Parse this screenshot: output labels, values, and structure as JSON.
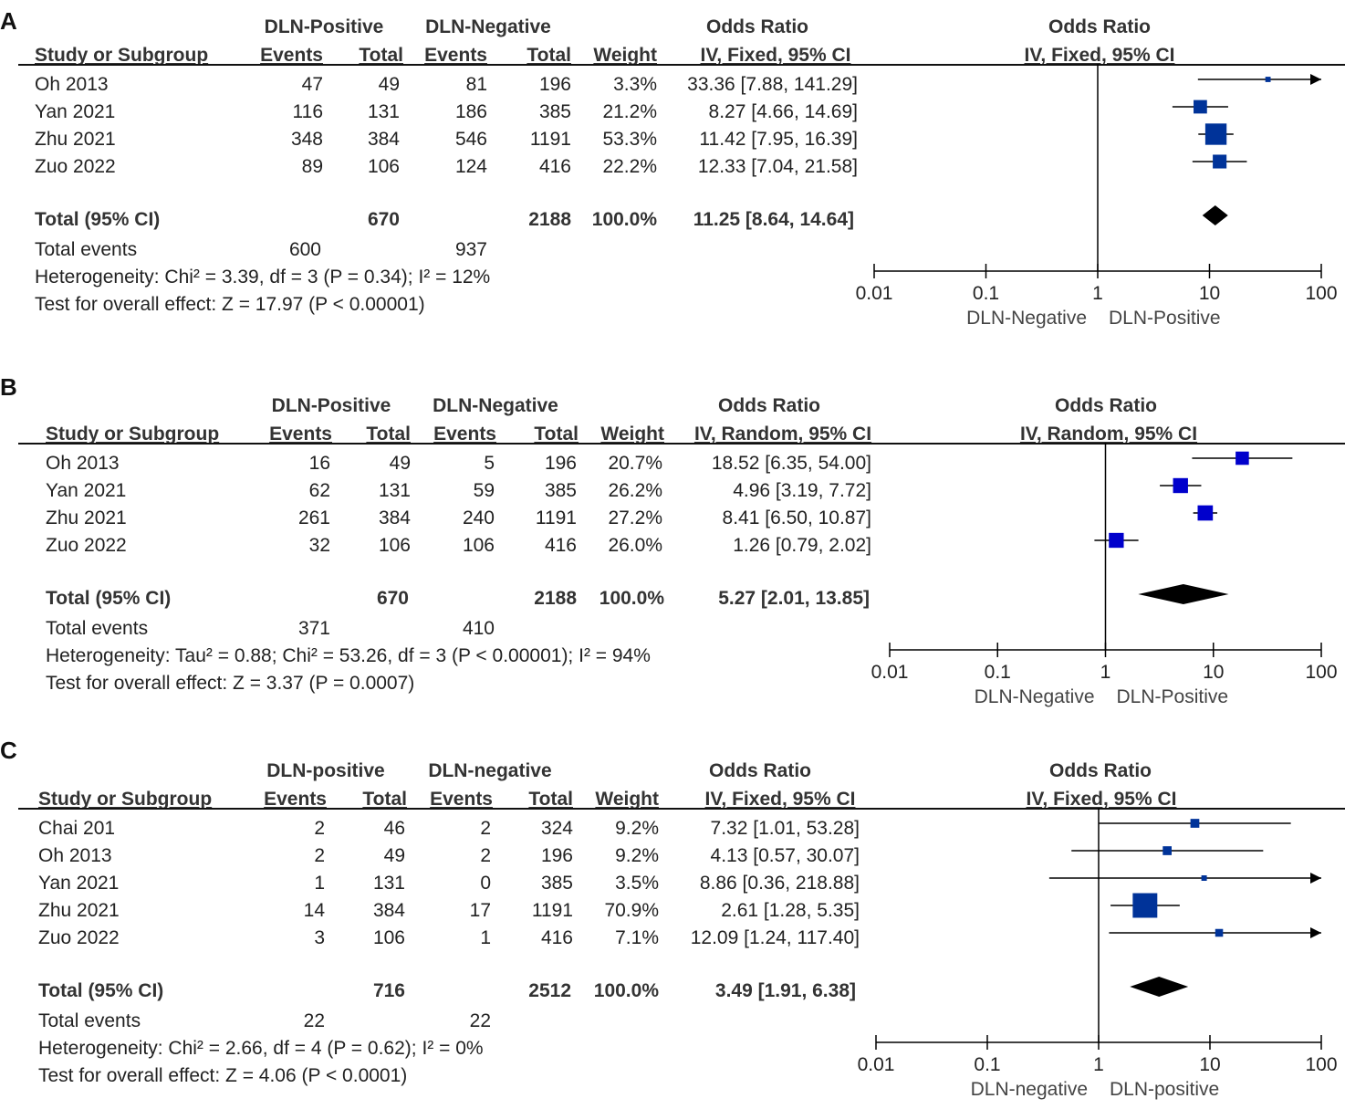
{
  "colors": {
    "marker": "#003399",
    "marker_b": "#0000cc",
    "line": "#000000"
  },
  "chart_data": [
    {
      "panel": "A",
      "type": "forest",
      "group1": "DLN-Positive",
      "group2": "DLN-Negative",
      "col_study": "Study or Subgroup",
      "col_events": "Events",
      "col_total": "Total",
      "col_weight": "Weight",
      "col_or": "Odds Ratio",
      "col_method": "IV, Fixed, 95% CI",
      "plot_title": "Odds Ratio",
      "plot_method": "IV, Fixed, 95% CI",
      "studies": [
        {
          "name": "Oh 2013",
          "e1": "47",
          "t1": "49",
          "e2": "81",
          "t2": "196",
          "weight": "3.3%",
          "ci_text": "33.36 [7.88, 141.29]",
          "or": 33.36,
          "lo": 7.88,
          "hi": 141.29,
          "w": 3.3
        },
        {
          "name": "Yan 2021",
          "e1": "116",
          "t1": "131",
          "e2": "186",
          "t2": "385",
          "weight": "21.2%",
          "ci_text": "8.27 [4.66, 14.69]",
          "or": 8.27,
          "lo": 4.66,
          "hi": 14.69,
          "w": 21.2
        },
        {
          "name": "Zhu 2021",
          "e1": "348",
          "t1": "384",
          "e2": "546",
          "t2": "1191",
          "weight": "53.3%",
          "ci_text": "11.42 [7.95, 16.39]",
          "or": 11.42,
          "lo": 7.95,
          "hi": 16.39,
          "w": 53.3
        },
        {
          "name": "Zuo 2022",
          "e1": "89",
          "t1": "106",
          "e2": "124",
          "t2": "416",
          "weight": "22.2%",
          "ci_text": "12.33 [7.04, 21.58]",
          "or": 12.33,
          "lo": 7.04,
          "hi": 21.58,
          "w": 22.2
        }
      ],
      "total": {
        "label": "Total (95% CI)",
        "t1": "670",
        "t2": "2188",
        "weight": "100.0%",
        "ci_text": "11.25 [8.64, 14.64]",
        "or": 11.25,
        "lo": 8.64,
        "hi": 14.64
      },
      "events": {
        "label": "Total events",
        "e1": "600",
        "e2": "937"
      },
      "heterogeneity": "Heterogeneity: Chi² = 3.39, df = 3 (P = 0.34); I² = 12%",
      "overall": "Test for overall effect: Z = 17.97 (P < 0.00001)",
      "axis": {
        "ticks": [
          0.01,
          0.1,
          1,
          10,
          100
        ],
        "tick_labels": [
          "0.01",
          "0.1",
          "1",
          "10",
          "100"
        ],
        "scale": "log"
      },
      "favours_left": "DLN-Negative",
      "favours_right": "DLN-Positive"
    },
    {
      "panel": "B",
      "type": "forest",
      "group1": "DLN-Positive",
      "group2": "DLN-Negative",
      "col_study": "Study or Subgroup",
      "col_events": "Events",
      "col_total": "Total",
      "col_weight": "Weight",
      "col_or": "Odds Ratio",
      "col_method": "IV, Random, 95% CI",
      "plot_title": "Odds Ratio",
      "plot_method": "IV, Random, 95% CI",
      "studies": [
        {
          "name": "Oh 2013",
          "e1": "16",
          "t1": "49",
          "e2": "5",
          "t2": "196",
          "weight": "20.7%",
          "ci_text": "18.52 [6.35, 54.00]",
          "or": 18.52,
          "lo": 6.35,
          "hi": 54.0,
          "w": 20.7
        },
        {
          "name": "Yan 2021",
          "e1": "62",
          "t1": "131",
          "e2": "59",
          "t2": "385",
          "weight": "26.2%",
          "ci_text": "4.96 [3.19, 7.72]",
          "or": 4.96,
          "lo": 3.19,
          "hi": 7.72,
          "w": 26.2
        },
        {
          "name": "Zhu 2021",
          "e1": "261",
          "t1": "384",
          "e2": "240",
          "t2": "1191",
          "weight": "27.2%",
          "ci_text": "8.41 [6.50, 10.87]",
          "or": 8.41,
          "lo": 6.5,
          "hi": 10.87,
          "w": 27.2
        },
        {
          "name": "Zuo 2022",
          "e1": "32",
          "t1": "106",
          "e2": "106",
          "t2": "416",
          "weight": "26.0%",
          "ci_text": "1.26 [0.79, 2.02]",
          "or": 1.26,
          "lo": 0.79,
          "hi": 2.02,
          "w": 26.0
        }
      ],
      "total": {
        "label": "Total (95% CI)",
        "t1": "670",
        "t2": "2188",
        "weight": "100.0%",
        "ci_text": "5.27 [2.01, 13.85]",
        "or": 5.27,
        "lo": 2.01,
        "hi": 13.85
      },
      "events": {
        "label": "Total events",
        "e1": "371",
        "e2": "410"
      },
      "heterogeneity": "Heterogeneity: Tau² = 0.88; Chi² = 53.26, df = 3 (P < 0.00001); I² = 94%",
      "overall": "Test for overall effect: Z = 3.37 (P = 0.0007)",
      "axis": {
        "ticks": [
          0.01,
          0.1,
          1,
          10,
          100
        ],
        "tick_labels": [
          "0.01",
          "0.1",
          "1",
          "10",
          "100"
        ],
        "scale": "log"
      },
      "favours_left": "DLN-Negative",
      "favours_right": "DLN-Positive"
    },
    {
      "panel": "C",
      "type": "forest",
      "group1": "DLN-positive",
      "group2": "DLN-negative",
      "col_study": "Study or Subgroup",
      "col_events": "Events",
      "col_total": "Total",
      "col_weight": "Weight",
      "col_or": "Odds Ratio",
      "col_method": "IV, Fixed, 95% CI",
      "plot_title": "Odds Ratio",
      "plot_method": "IV, Fixed, 95% CI",
      "studies": [
        {
          "name": "Chai 201",
          "e1": "2",
          "t1": "46",
          "e2": "2",
          "t2": "324",
          "weight": "9.2%",
          "ci_text": "7.32 [1.01, 53.28]",
          "or": 7.32,
          "lo": 1.01,
          "hi": 53.28,
          "w": 9.2
        },
        {
          "name": "Oh 2013",
          "e1": "2",
          "t1": "49",
          "e2": "2",
          "t2": "196",
          "weight": "9.2%",
          "ci_text": "4.13 [0.57, 30.07]",
          "or": 4.13,
          "lo": 0.57,
          "hi": 30.07,
          "w": 9.2
        },
        {
          "name": "Yan 2021",
          "e1": "1",
          "t1": "131",
          "e2": "0",
          "t2": "385",
          "weight": "3.5%",
          "ci_text": "8.86 [0.36, 218.88]",
          "or": 8.86,
          "lo": 0.36,
          "hi": 218.88,
          "w": 3.5
        },
        {
          "name": "Zhu 2021",
          "e1": "14",
          "t1": "384",
          "e2": "17",
          "t2": "1191",
          "weight": "70.9%",
          "ci_text": "2.61 [1.28, 5.35]",
          "or": 2.61,
          "lo": 1.28,
          "hi": 5.35,
          "w": 70.9
        },
        {
          "name": "Zuo 2022",
          "e1": "3",
          "t1": "106",
          "e2": "1",
          "t2": "416",
          "weight": "7.1%",
          "ci_text": "12.09 [1.24, 117.40]",
          "or": 12.09,
          "lo": 1.24,
          "hi": 117.4,
          "w": 7.1
        }
      ],
      "total": {
        "label": "Total (95% CI)",
        "t1": "716",
        "t2": "2512",
        "weight": "100.0%",
        "ci_text": "3.49 [1.91, 6.38]",
        "or": 3.49,
        "lo": 1.91,
        "hi": 6.38
      },
      "events": {
        "label": "Total events",
        "e1": "22",
        "e2": "22"
      },
      "heterogeneity": "Heterogeneity: Chi² = 2.66, df = 4 (P = 0.62); I² = 0%",
      "overall": "Test for overall effect: Z = 4.06 (P < 0.0001)",
      "axis": {
        "ticks": [
          0.01,
          0.1,
          1,
          10,
          100
        ],
        "tick_labels": [
          "0.01",
          "0.1",
          "1",
          "10",
          "100"
        ],
        "scale": "log"
      },
      "favours_left": "DLN-negative",
      "favours_right": "DLN-positive"
    }
  ],
  "panel_letters": [
    "A",
    "B",
    "C"
  ]
}
